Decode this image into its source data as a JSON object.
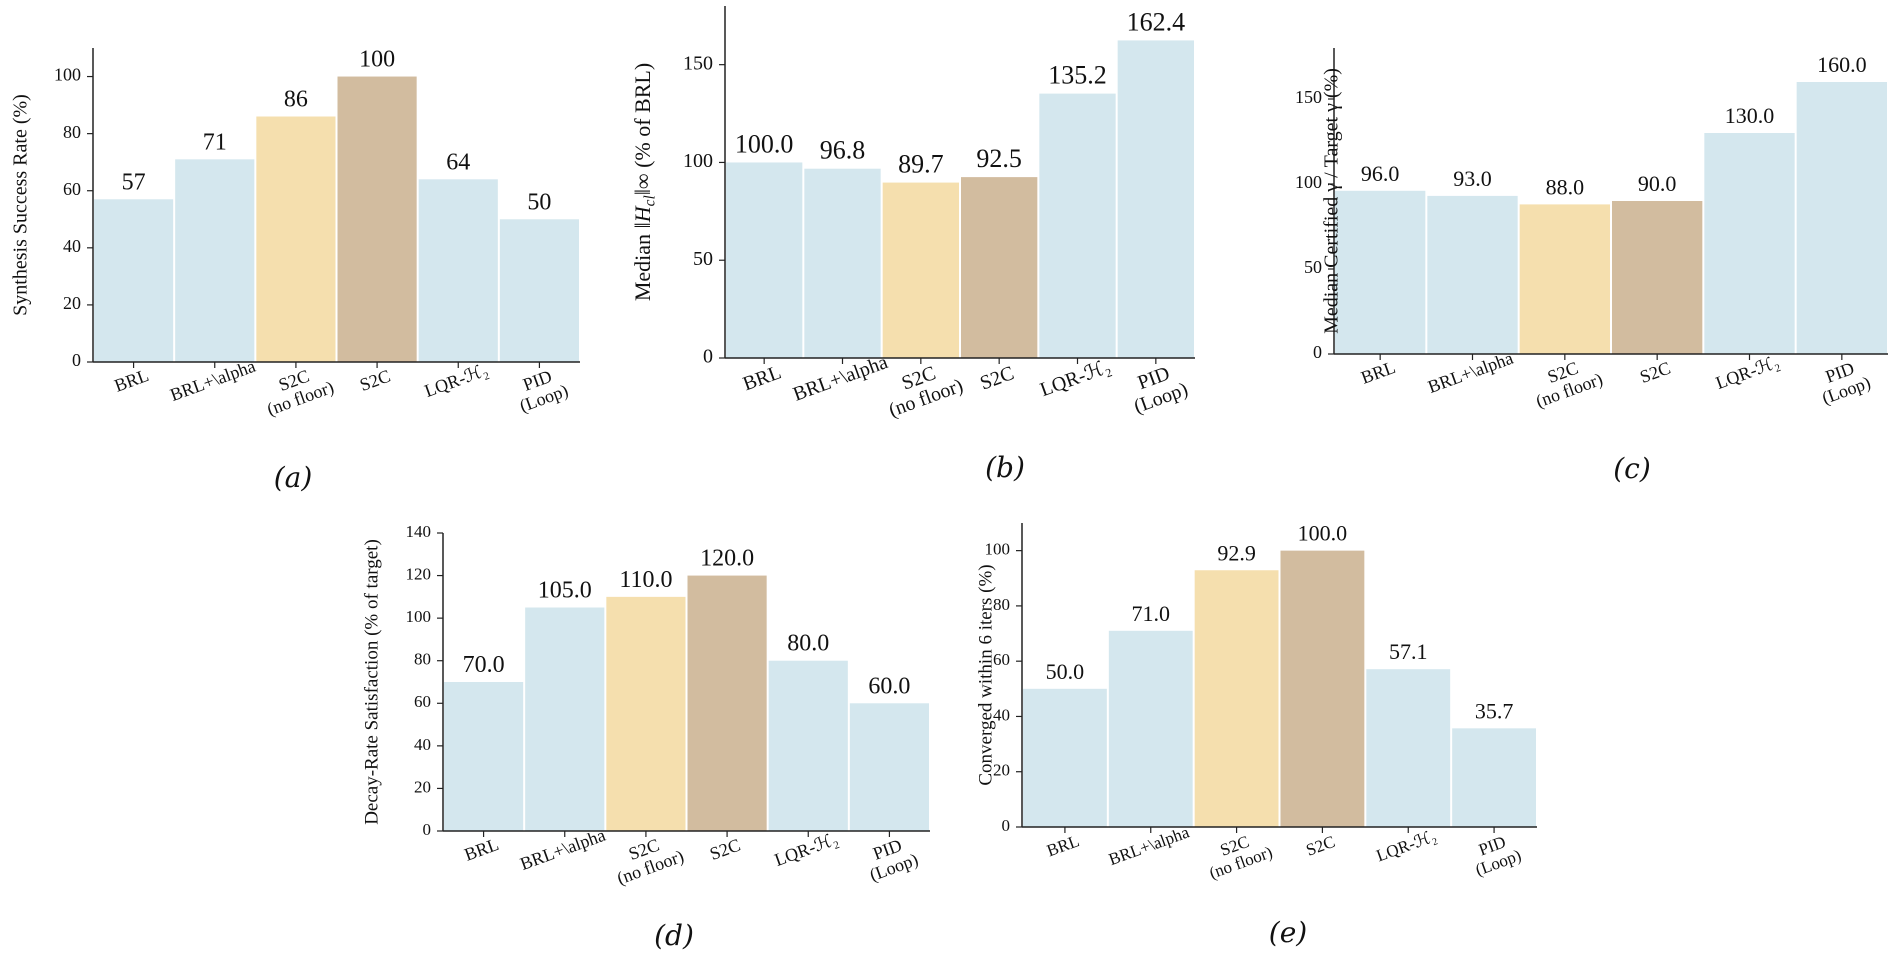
{
  "chart_data": [
    {
      "id": "a",
      "type": "bar",
      "panel_label": "(a)",
      "title": "",
      "xlabel": "",
      "ylabel": "Synthesis Success Rate (%)",
      "ylim": [
        0,
        110
      ],
      "yticks": [
        0,
        20,
        40,
        60,
        80,
        100
      ],
      "grid": false,
      "categories": [
        "BRL",
        "BRL+\\alpha",
        "S2C\n(no floor)",
        "S2C",
        "LQR-ℋ₂",
        "PID\n(Loop)"
      ],
      "values": [
        57,
        71,
        86,
        100,
        64,
        50
      ],
      "value_labels": [
        "57",
        "71",
        "86",
        "100",
        "64",
        "50"
      ],
      "colors": [
        "#d4e7ee",
        "#d4e7ee",
        "#f5dfae",
        "#d2bc9f",
        "#d4e7ee",
        "#d4e7ee"
      ]
    },
    {
      "id": "b",
      "type": "bar",
      "panel_label": "(b)",
      "title": "",
      "xlabel": "",
      "ylabel": "Median ‖H_cl‖∞ (% of BRL)",
      "ylim": [
        0,
        180
      ],
      "yticks": [
        0,
        50,
        100,
        150
      ],
      "grid": false,
      "categories": [
        "BRL",
        "BRL+\\alpha",
        "S2C\n(no floor)",
        "S2C",
        "LQR-ℋ₂",
        "PID\n(Loop)"
      ],
      "values": [
        100.0,
        96.8,
        89.7,
        92.5,
        135.2,
        162.4
      ],
      "value_labels": [
        "100.0",
        "96.8",
        "89.7",
        "92.5",
        "135.2",
        "162.4"
      ],
      "colors": [
        "#d4e7ee",
        "#d4e7ee",
        "#f5dfae",
        "#d2bc9f",
        "#d4e7ee",
        "#d4e7ee"
      ]
    },
    {
      "id": "c",
      "type": "bar",
      "panel_label": "(c)",
      "title": "",
      "xlabel": "",
      "ylabel": "Median Certified γ / Target γ (%)",
      "ylim": [
        0,
        180
      ],
      "yticks": [
        0,
        50,
        100,
        150
      ],
      "grid": false,
      "categories": [
        "BRL",
        "BRL+\\alpha",
        "S2C\n(no floor)",
        "S2C",
        "LQR-ℋ₂",
        "PID\n(Loop)"
      ],
      "values": [
        96.0,
        93.0,
        88.0,
        90.0,
        130.0,
        160.0
      ],
      "value_labels": [
        "96.0",
        "93.0",
        "88.0",
        "90.0",
        "130.0",
        "160.0"
      ],
      "colors": [
        "#d4e7ee",
        "#d4e7ee",
        "#f5dfae",
        "#d2bc9f",
        "#d4e7ee",
        "#d4e7ee"
      ]
    },
    {
      "id": "d",
      "type": "bar",
      "panel_label": "(d)",
      "title": "",
      "xlabel": "",
      "ylabel": "Decay-Rate Satisfaction (% of target)",
      "ylim": [
        0,
        140
      ],
      "yticks": [
        0,
        20,
        40,
        60,
        80,
        100,
        120,
        140
      ],
      "grid": false,
      "categories": [
        "BRL",
        "BRL+\\alpha",
        "S2C\n(no floor)",
        "S2C",
        "LQR-ℋ₂",
        "PID\n(Loop)"
      ],
      "values": [
        70.0,
        105.0,
        110.0,
        120.0,
        80.0,
        60.0
      ],
      "value_labels": [
        "70.0",
        "105.0",
        "110.0",
        "120.0",
        "80.0",
        "60.0"
      ],
      "colors": [
        "#d4e7ee",
        "#d4e7ee",
        "#f5dfae",
        "#d2bc9f",
        "#d4e7ee",
        "#d4e7ee"
      ]
    },
    {
      "id": "e",
      "type": "bar",
      "panel_label": "(e)",
      "title": "",
      "xlabel": "",
      "ylabel": "Converged within 6 iters (%)",
      "ylim": [
        0,
        110
      ],
      "yticks": [
        0,
        20,
        40,
        60,
        80,
        100
      ],
      "grid": false,
      "categories": [
        "BRL",
        "BRL+\\alpha",
        "S2C\n(no floor)",
        "S2C",
        "LQR-ℋ₂",
        "PID\n(Loop)"
      ],
      "values": [
        50.0,
        71.0,
        92.9,
        100.0,
        57.1,
        35.7
      ],
      "value_labels": [
        "50.0",
        "71.0",
        "92.9",
        "100.0",
        "57.1",
        "35.7"
      ],
      "colors": [
        "#d4e7ee",
        "#d4e7ee",
        "#f5dfae",
        "#d2bc9f",
        "#d4e7ee",
        "#d4e7ee"
      ]
    }
  ]
}
